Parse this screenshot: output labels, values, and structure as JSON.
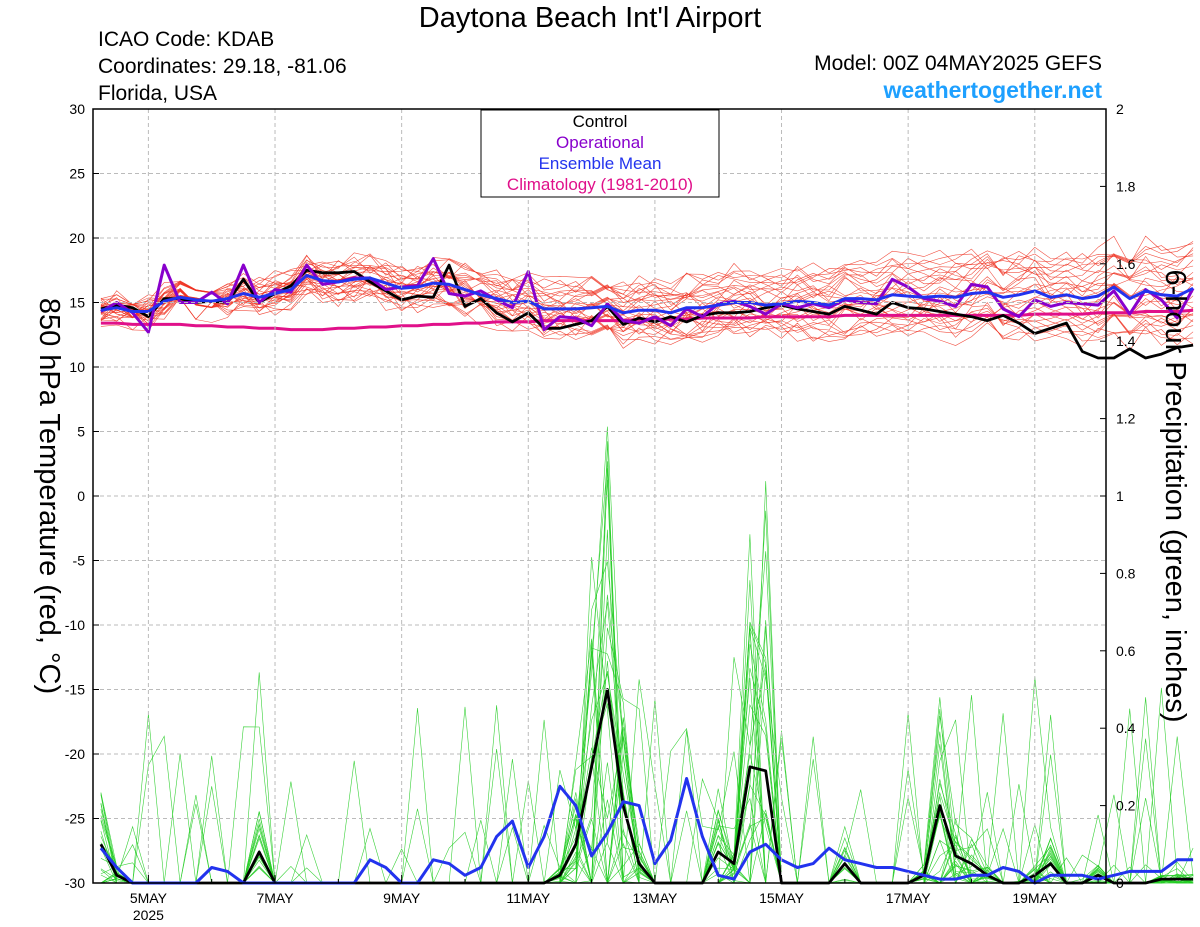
{
  "header": {
    "title": "Daytona Beach Int'l Airport",
    "icao": "ICAO Code: KDAB",
    "coordinates": "Coordinates: 29.18, -81.06",
    "region": "Florida, USA",
    "model": "Model: 00Z 04MAY2025 GEFS",
    "site": "weathertogether.net"
  },
  "chart_data": {
    "type": "line",
    "ylabel": "850 hPa Temperature (red, °C)",
    "y2label": "6-hour Precipitation (green, inches)",
    "ylim": [
      -30,
      30
    ],
    "y2lim": [
      0,
      2
    ],
    "yticks": [
      "30",
      "25",
      "20",
      "15",
      "10",
      "5",
      "0",
      "-5",
      "-10",
      "-15",
      "-20",
      "-25",
      "-30"
    ],
    "y2ticks": [
      "2",
      "1.8",
      "1.6",
      "1.4",
      "1.2",
      "1",
      "0.8",
      "0.6",
      "0.4",
      "0.2",
      "0"
    ],
    "xlim": [
      4.125,
      20.125
    ],
    "xticks": [
      {
        "day": 5,
        "label": "5MAY",
        "sub": "2025"
      },
      {
        "day": 7,
        "label": "7MAY",
        "sub": ""
      },
      {
        "day": 9,
        "label": "9MAY",
        "sub": ""
      },
      {
        "day": 11,
        "label": "11MAY",
        "sub": ""
      },
      {
        "day": 13,
        "label": "13MAY",
        "sub": ""
      },
      {
        "day": 15,
        "label": "15MAY",
        "sub": ""
      },
      {
        "day": 17,
        "label": "17MAY",
        "sub": ""
      },
      {
        "day": 19,
        "label": "19MAY",
        "sub": ""
      }
    ],
    "x_start_day": 4.25,
    "x_step_days": 0.25,
    "legend": {
      "placement": "top-center",
      "entries": [
        {
          "name": "Control",
          "color": "#000000"
        },
        {
          "name": "Operational",
          "color": "#8800cc"
        },
        {
          "name": "Ensemble Mean",
          "color": "#2233ee"
        },
        {
          "name": "Climatology (1981-2010)",
          "color": "#e0108a"
        }
      ]
    },
    "colors": {
      "members_temp": "#ee3322",
      "members_precip": "#22cc22",
      "control": "#000000",
      "operational": "#8800cc",
      "mean": "#2233ee",
      "climatology": "#e0108a"
    },
    "series": [
      {
        "name": "Control",
        "kind": "temp",
        "values": [
          14.5,
          14.8,
          14.6,
          13.9,
          15.3,
          15.3,
          15.0,
          15.1,
          15.0,
          16.8,
          15.0,
          15.7,
          16.3,
          17.5,
          17.3,
          17.3,
          17.4,
          16.6,
          15.9,
          15.2,
          15.5,
          15.4,
          17.9,
          14.7,
          15.3,
          14.2,
          13.5,
          14.2,
          13.0,
          13.0,
          13.3,
          13.6,
          14.7,
          13.3,
          13.8,
          13.5,
          13.9,
          13.5,
          14.0,
          14.2,
          14.2,
          14.3,
          14.6,
          14.8,
          14.5,
          14.3,
          14.1,
          14.7,
          14.4,
          14.1,
          15.0,
          14.6,
          14.5,
          14.3,
          14.1,
          13.9,
          13.6,
          14.0,
          13.4,
          12.6,
          13.0,
          13.4,
          11.2,
          10.7,
          10.7,
          11.4,
          10.7,
          11.0,
          11.5,
          11.7
        ]
      },
      {
        "name": "Operational",
        "kind": "temp",
        "values": [
          14.3,
          15.0,
          14.2,
          12.7,
          17.9,
          15.0,
          15.0,
          15.8,
          14.9,
          17.9,
          15.0,
          16.0,
          15.8,
          17.9,
          16.4,
          16.6,
          16.9,
          16.9,
          16.0,
          16.2,
          16.3,
          18.4,
          15.7,
          15.5,
          15.9,
          15.2,
          14.6,
          17.4,
          12.9,
          13.9,
          13.8,
          13.2,
          14.9,
          13.6,
          13.4,
          13.9,
          13.2,
          14.5,
          13.9,
          14.9,
          15.1,
          14.7,
          14.1,
          14.9,
          14.6,
          14.9,
          14.6,
          15.2,
          15.0,
          14.9,
          16.8,
          16.2,
          15.3,
          15.1,
          14.7,
          16.4,
          16.2,
          14.5,
          13.9,
          15.2,
          14.7,
          15.0,
          14.9,
          14.8,
          15.9,
          14.1,
          16.0,
          15.2,
          13.8,
          16.1
        ]
      },
      {
        "name": "Ensemble Mean",
        "kind": "temp",
        "values": [
          14.4,
          14.6,
          14.3,
          14.3,
          15.1,
          15.4,
          15.2,
          15.1,
          15.3,
          15.7,
          15.4,
          15.7,
          16.0,
          17.1,
          16.7,
          16.6,
          16.8,
          16.9,
          16.5,
          16.1,
          16.2,
          16.5,
          16.4,
          16.0,
          15.6,
          15.3,
          15.0,
          15.1,
          14.5,
          14.5,
          14.5,
          14.6,
          14.7,
          14.2,
          14.4,
          14.4,
          14.2,
          14.6,
          14.6,
          14.8,
          15.0,
          15.0,
          14.8,
          14.9,
          15.1,
          15.0,
          14.8,
          15.3,
          15.3,
          15.2,
          15.6,
          15.5,
          15.4,
          15.5,
          15.4,
          15.7,
          15.8,
          15.4,
          15.6,
          15.9,
          15.4,
          15.6,
          15.3,
          15.5,
          16.2,
          15.3,
          15.9,
          15.6,
          15.5,
          16.1
        ]
      },
      {
        "name": "Climatology (1981-2010)",
        "kind": "temp",
        "values": [
          13.4,
          13.4,
          13.3,
          13.3,
          13.3,
          13.3,
          13.2,
          13.2,
          13.1,
          13.1,
          13.0,
          13.0,
          12.9,
          12.9,
          12.9,
          13.0,
          13.0,
          13.1,
          13.1,
          13.2,
          13.2,
          13.3,
          13.3,
          13.4,
          13.4,
          13.5,
          13.5,
          13.5,
          13.6,
          13.6,
          13.6,
          13.6,
          13.6,
          13.6,
          13.7,
          13.7,
          13.7,
          13.7,
          13.8,
          13.8,
          13.8,
          13.8,
          13.9,
          13.9,
          13.9,
          13.9,
          13.9,
          14.0,
          14.0,
          14.0,
          14.0,
          14.0,
          14.0,
          14.0,
          14.0,
          14.0,
          14.0,
          14.0,
          14.0,
          14.1,
          14.1,
          14.1,
          14.1,
          14.2,
          14.2,
          14.2,
          14.3,
          14.3,
          14.3,
          14.4
        ]
      },
      {
        "name": "Control",
        "kind": "precip",
        "values": [
          0.1,
          0.02,
          0.0,
          0.0,
          0.0,
          0.0,
          0.0,
          0.0,
          0.0,
          0.0,
          0.08,
          0.0,
          0.0,
          0.0,
          0.0,
          0.0,
          0.0,
          0.0,
          0.0,
          0.0,
          0.0,
          0.0,
          0.0,
          0.0,
          0.0,
          0.0,
          0.0,
          0.0,
          0.0,
          0.02,
          0.1,
          0.3,
          0.5,
          0.2,
          0.05,
          0.0,
          0.0,
          0.0,
          0.0,
          0.08,
          0.05,
          0.3,
          0.29,
          0.0,
          0.0,
          0.0,
          0.0,
          0.05,
          0.0,
          0.0,
          0.0,
          0.0,
          0.02,
          0.2,
          0.07,
          0.05,
          0.02,
          0.0,
          0.0,
          0.02,
          0.05,
          0.0,
          0.0,
          0.02,
          0.0,
          0.0,
          0.0,
          0.01,
          0.01,
          0.01
        ]
      },
      {
        "name": "Ensemble Mean",
        "kind": "precip",
        "values": [
          0.09,
          0.04,
          0.0,
          0.0,
          0.0,
          0.0,
          0.0,
          0.04,
          0.03,
          0.0,
          0.0,
          0.0,
          0.0,
          0.0,
          0.0,
          0.0,
          0.0,
          0.06,
          0.04,
          0.0,
          0.0,
          0.06,
          0.05,
          0.02,
          0.04,
          0.12,
          0.16,
          0.04,
          0.12,
          0.25,
          0.2,
          0.07,
          0.13,
          0.21,
          0.2,
          0.05,
          0.11,
          0.27,
          0.12,
          0.02,
          0.01,
          0.08,
          0.1,
          0.06,
          0.04,
          0.05,
          0.09,
          0.06,
          0.05,
          0.04,
          0.04,
          0.03,
          0.02,
          0.01,
          0.01,
          0.02,
          0.02,
          0.04,
          0.03,
          0.0,
          0.02,
          0.02,
          0.02,
          0.01,
          0.02,
          0.03,
          0.03,
          0.03,
          0.06,
          0.06
        ]
      }
    ]
  }
}
